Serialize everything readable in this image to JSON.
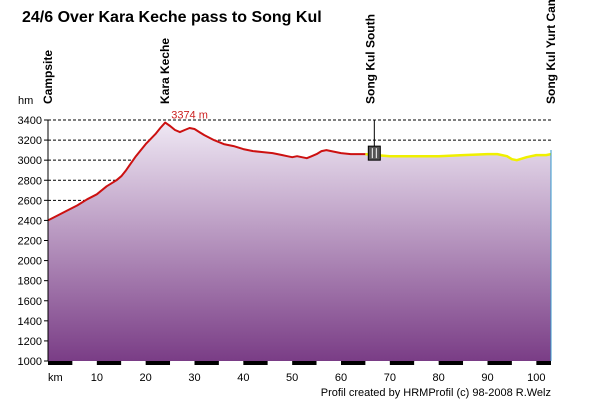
{
  "chart_data": {
    "type": "area",
    "title": "24/6 Over Kara Keche pass to Song Kul",
    "xlabel": "km",
    "ylabel": "hm",
    "xlim": [
      0,
      103
    ],
    "ylim": [
      1000,
      3400
    ],
    "x_ticks": [
      10,
      20,
      30,
      40,
      50,
      60,
      70,
      80,
      90,
      100
    ],
    "y_ticks": [
      1000,
      1200,
      1400,
      1600,
      1800,
      2000,
      2200,
      2400,
      2600,
      2800,
      3000,
      3200,
      3400
    ],
    "grid": true,
    "series": [
      {
        "name": "",
        "color": "#cc1111",
        "x": [
          0,
          2,
          4,
          6,
          8,
          10,
          12,
          14,
          15,
          16,
          18,
          20,
          22,
          23,
          24,
          25,
          26,
          27,
          28,
          29,
          30,
          31,
          32,
          34,
          36,
          38,
          40,
          42,
          44,
          46,
          48,
          49,
          50,
          51,
          52,
          53,
          54,
          55,
          56,
          57,
          58,
          60,
          62,
          64,
          65
        ],
        "values": [
          2400,
          2450,
          2500,
          2550,
          2610,
          2660,
          2740,
          2800,
          2840,
          2900,
          3040,
          3160,
          3260,
          3320,
          3374,
          3340,
          3300,
          3280,
          3300,
          3320,
          3310,
          3280,
          3250,
          3200,
          3160,
          3140,
          3110,
          3090,
          3080,
          3070,
          3050,
          3040,
          3030,
          3040,
          3030,
          3020,
          3040,
          3060,
          3090,
          3100,
          3090,
          3070,
          3060,
          3060,
          3060
        ]
      },
      {
        "name": "",
        "color": "#f0f000",
        "x": [
          65,
          67,
          70,
          75,
          80,
          85,
          90,
          92,
          94,
          95,
          96,
          98,
          100,
          102,
          103
        ],
        "values": [
          3060,
          3050,
          3040,
          3040,
          3040,
          3050,
          3060,
          3060,
          3040,
          3010,
          3000,
          3030,
          3050,
          3050,
          3060
        ]
      }
    ],
    "peak_label": "3374 m",
    "peak_point": {
      "x": 24,
      "y": 3374
    },
    "waypoints": [
      {
        "name": "Campsite",
        "x": 0
      },
      {
        "name": "Kara Keche",
        "x": 24
      },
      {
        "name": "Song Kul South",
        "x": 66,
        "icon": "restaurant-icon",
        "icon_y": 3060
      },
      {
        "name": "Song Kul Yurt Camp",
        "x": 103
      }
    ],
    "fill_top_color": "#efe8f4",
    "fill_bottom_color": "#7a3d86"
  },
  "credit": "Profil created by HRMProfil (c) 98-2008 R.Welz"
}
